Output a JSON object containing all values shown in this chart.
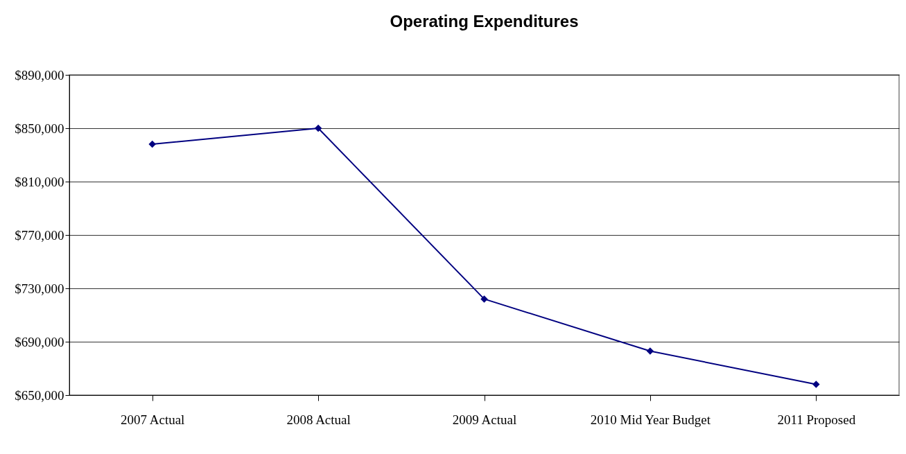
{
  "chart_data": {
    "type": "line",
    "title": "Operating Expenditures",
    "categories": [
      "2007 Actual",
      "2008 Actual",
      "2009 Actual",
      "2010 Mid Year Budget",
      "2011 Proposed"
    ],
    "series": [
      {
        "color": "#000080",
        "values": [
          838000,
          850000,
          722000,
          683000,
          658000
        ]
      }
    ],
    "ylim": [
      650000,
      890000
    ],
    "yticks": [
      {
        "value": 650000,
        "label": "$650,000"
      },
      {
        "value": 690000,
        "label": "$690,000"
      },
      {
        "value": 730000,
        "label": "$730,000"
      },
      {
        "value": 770000,
        "label": "$770,000"
      },
      {
        "value": 810000,
        "label": "$810,000"
      },
      {
        "value": 850000,
        "label": "$850,000"
      },
      {
        "value": 890000,
        "label": "$890,000"
      }
    ],
    "grid": "y",
    "marker": "diamond",
    "line_style": "solid"
  }
}
